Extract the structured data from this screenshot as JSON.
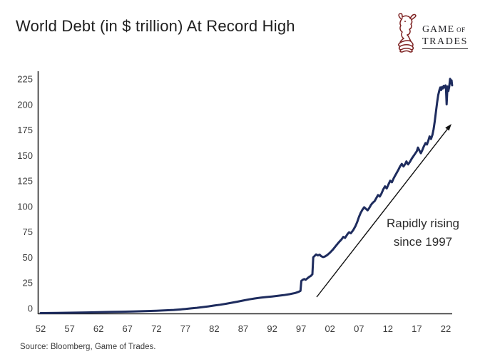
{
  "header": {
    "title": "World Debt (in $ trillion) At Record High",
    "logo": {
      "game": "GAME",
      "of": "OF",
      "trades": "TRADES"
    }
  },
  "annotation": {
    "line1": "Rapidly rising",
    "line2": "since 1997"
  },
  "footer": {
    "source": "Source: Bloomberg, Game of Trades."
  },
  "chart_data": {
    "type": "line",
    "title": "World Debt (in $ trillion) At Record High",
    "series_name": "World debt ($ trillion)",
    "xlabel": "",
    "ylabel": "",
    "xlim": [
      1952,
      2023.6
    ],
    "ylim": [
      0,
      232
    ],
    "grid": false,
    "legend": "none",
    "line_color": "#1e2c5e",
    "axis_color": "#2b2b2b",
    "arrow_color": "#111111",
    "y_ticks": [
      0,
      25,
      50,
      75,
      100,
      125,
      150,
      175,
      200,
      225
    ],
    "x_ticks": [
      {
        "label": "52",
        "year": 1952
      },
      {
        "label": "57",
        "year": 1957
      },
      {
        "label": "62",
        "year": 1962
      },
      {
        "label": "67",
        "year": 1967
      },
      {
        "label": "72",
        "year": 1972
      },
      {
        "label": "77",
        "year": 1977
      },
      {
        "label": "82",
        "year": 1982
      },
      {
        "label": "87",
        "year": 1987
      },
      {
        "label": "92",
        "year": 1992
      },
      {
        "label": "97",
        "year": 1997
      },
      {
        "label": "02",
        "year": 2002
      },
      {
        "label": "07",
        "year": 2007
      },
      {
        "label": "12",
        "year": 2012
      },
      {
        "label": "17",
        "year": 2017
      },
      {
        "label": "22",
        "year": 2022
      }
    ],
    "points": [
      [
        1952,
        0.7
      ],
      [
        1955,
        0.9
      ],
      [
        1958,
        1.1
      ],
      [
        1960,
        1.3
      ],
      [
        1962,
        1.6
      ],
      [
        1964,
        1.8
      ],
      [
        1966,
        2.0
      ],
      [
        1968,
        2.3
      ],
      [
        1970,
        2.6
      ],
      [
        1972,
        2.9
      ],
      [
        1973,
        3.2
      ],
      [
        1974,
        3.5
      ],
      [
        1975,
        3.8
      ],
      [
        1976,
        4.2
      ],
      [
        1977,
        4.7
      ],
      [
        1978,
        5.3
      ],
      [
        1979,
        5.9
      ],
      [
        1980,
        6.6
      ],
      [
        1981,
        7.3
      ],
      [
        1982,
        8.1
      ],
      [
        1983,
        8.9
      ],
      [
        1984,
        9.8
      ],
      [
        1985,
        10.8
      ],
      [
        1986,
        11.9
      ],
      [
        1987,
        13.0
      ],
      [
        1988,
        14.1
      ],
      [
        1989,
        15.0
      ],
      [
        1990,
        15.8
      ],
      [
        1991,
        16.4
      ],
      [
        1992,
        17.0
      ],
      [
        1993,
        17.6
      ],
      [
        1994,
        18.3
      ],
      [
        1995,
        19.2
      ],
      [
        1996,
        20.4
      ],
      [
        1996.6,
        21.6
      ],
      [
        1996.9,
        22.5
      ],
      [
        1997.05,
        32.2
      ],
      [
        1997.3,
        33.5
      ],
      [
        1997.55,
        34.0
      ],
      [
        1997.8,
        33.4
      ],
      [
        1998.1,
        34.8
      ],
      [
        1998.4,
        36.2
      ],
      [
        1998.7,
        37.2
      ],
      [
        1998.95,
        38.8
      ],
      [
        1999.1,
        55.4
      ],
      [
        1999.35,
        56.8
      ],
      [
        1999.6,
        58.2
      ],
      [
        1999.9,
        57.3
      ],
      [
        2000.2,
        58.0
      ],
      [
        2000.5,
        56.4
      ],
      [
        2000.8,
        55.6
      ],
      [
        2001.1,
        56.1
      ],
      [
        2001.5,
        57.5
      ],
      [
        2002,
        60.0
      ],
      [
        2002.5,
        63.0
      ],
      [
        2003,
        66.5
      ],
      [
        2003.5,
        70.0
      ],
      [
        2004,
        73.0
      ],
      [
        2004.3,
        75.5
      ],
      [
        2004.6,
        74.5
      ],
      [
        2005,
        78.0
      ],
      [
        2005.3,
        80.0
      ],
      [
        2005.6,
        79.0
      ],
      [
        2006,
        82.0
      ],
      [
        2006.4,
        86.0
      ],
      [
        2006.7,
        90.0
      ],
      [
        2007,
        95.0
      ],
      [
        2007.3,
        99.0
      ],
      [
        2007.6,
        102.0
      ],
      [
        2007.9,
        104.5
      ],
      [
        2008.2,
        103.0
      ],
      [
        2008.5,
        101.5
      ],
      [
        2008.8,
        104.0
      ],
      [
        2009.1,
        107.0
      ],
      [
        2009.4,
        109.0
      ],
      [
        2009.7,
        110.5
      ],
      [
        2010,
        113.5
      ],
      [
        2010.3,
        116.5
      ],
      [
        2010.6,
        115.0
      ],
      [
        2010.9,
        118.0
      ],
      [
        2011.2,
        122.0
      ],
      [
        2011.5,
        125.0
      ],
      [
        2011.8,
        123.0
      ],
      [
        2012.1,
        127.0
      ],
      [
        2012.4,
        130.5
      ],
      [
        2012.7,
        129.0
      ],
      [
        2013,
        133.0
      ],
      [
        2013.4,
        137.0
      ],
      [
        2013.8,
        141.0
      ],
      [
        2014.1,
        144.5
      ],
      [
        2014.4,
        147.0
      ],
      [
        2014.7,
        144.5
      ],
      [
        2015,
        147.0
      ],
      [
        2015.2,
        149.5
      ],
      [
        2015.5,
        146.5
      ],
      [
        2015.8,
        149.0
      ],
      [
        2016.1,
        152.0
      ],
      [
        2016.4,
        154.5
      ],
      [
        2016.7,
        157.0
      ],
      [
        2017,
        159.5
      ],
      [
        2017.2,
        163.0
      ],
      [
        2017.45,
        160.0
      ],
      [
        2017.7,
        157.5
      ],
      [
        2017.95,
        160.5
      ],
      [
        2018.2,
        164.0
      ],
      [
        2018.5,
        167.5
      ],
      [
        2018.75,
        166.0
      ],
      [
        2019,
        170.0
      ],
      [
        2019.2,
        174.0
      ],
      [
        2019.45,
        171.5
      ],
      [
        2019.7,
        175.5
      ],
      [
        2019.9,
        181.0
      ],
      [
        2020.1,
        189.0
      ],
      [
        2020.3,
        198.0
      ],
      [
        2020.5,
        207.0
      ],
      [
        2020.7,
        214.5
      ],
      [
        2020.9,
        219.5
      ],
      [
        2021.05,
        222.0
      ],
      [
        2021.2,
        219.5
      ],
      [
        2021.35,
        222.5
      ],
      [
        2021.5,
        221.0
      ],
      [
        2021.65,
        223.5
      ],
      [
        2021.8,
        222.0
      ],
      [
        2021.95,
        224.0
      ],
      [
        2022.05,
        219.5
      ],
      [
        2022.15,
        205.5
      ],
      [
        2022.3,
        223.0
      ],
      [
        2022.45,
        218.5
      ],
      [
        2022.6,
        222.5
      ],
      [
        2022.75,
        230.5
      ],
      [
        2022.9,
        226.0
      ],
      [
        2023.0,
        229.0
      ],
      [
        2023.1,
        224.0
      ]
    ],
    "annotations": [
      {
        "text": "Rapidly rising since 1997",
        "type": "arrow",
        "points_from_year": 1999.5,
        "points_to_year": 2022.8
      }
    ]
  }
}
